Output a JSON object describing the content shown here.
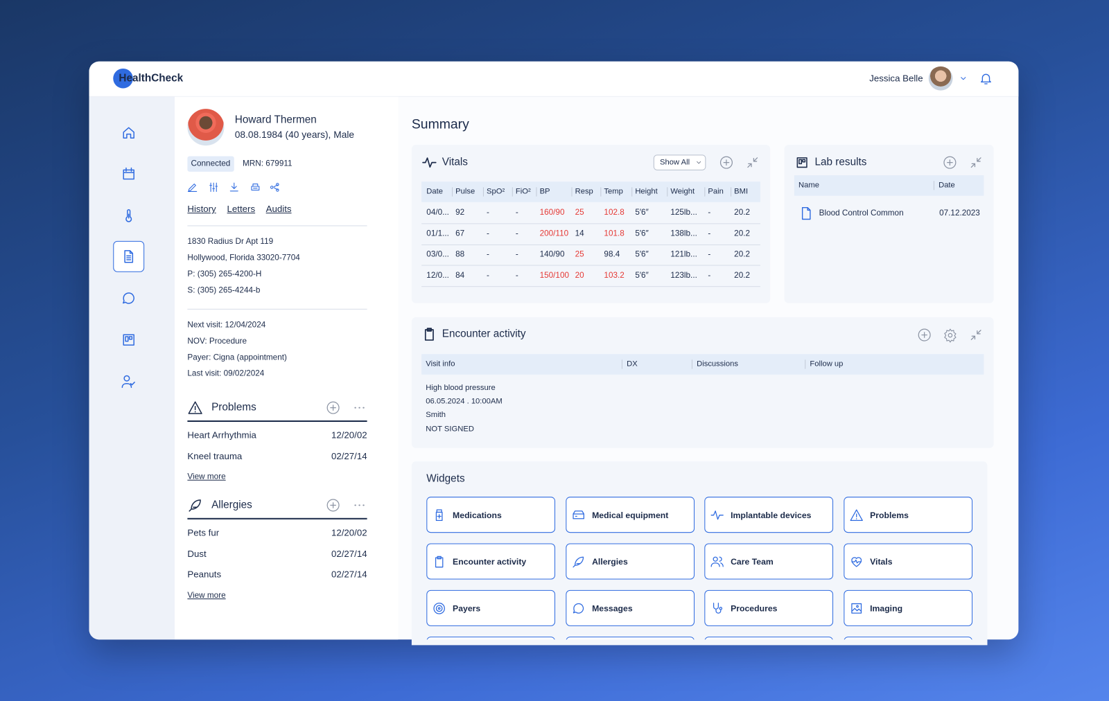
{
  "header": {
    "logo": "HealthCheck",
    "user": "Jessica Belle"
  },
  "patient": {
    "name": "Howard Thermen",
    "dob": "08.08.1984 (40 years), Male",
    "status": "Connected",
    "mrn": "MRN: 679911",
    "links": [
      "History",
      "Letters",
      "Audits"
    ],
    "address": [
      "1830 Radius Dr Apt 119",
      "Hollywood, Florida 33020-7704",
      "P: (305) 265-4200-H",
      "S: (305) 265-4244-b"
    ],
    "visit": [
      "Next visit: 12/04/2024",
      "NOV: Procedure",
      "Payer: Cigna (appointment)",
      "Last visit: 09/02/2024"
    ]
  },
  "problems": {
    "title": "Problems",
    "items": [
      {
        "name": "Heart Arrhythmia",
        "date": "12/20/02"
      },
      {
        "name": "Kneel trauma",
        "date": "02/27/14"
      }
    ],
    "more": "View more"
  },
  "allergies": {
    "title": "Allergies",
    "items": [
      {
        "name": "Pets fur",
        "date": "12/20/02"
      },
      {
        "name": "Dust",
        "date": "02/27/14"
      },
      {
        "name": "Peanuts",
        "date": "02/27/14"
      }
    ],
    "more": "View more"
  },
  "summary": {
    "title": "Summary"
  },
  "vitals": {
    "title": "Vitals",
    "filter": "Show All",
    "columns": [
      "Date",
      "Pulse",
      "SpO²",
      "FiO²",
      "BP",
      "Resp",
      "Temp",
      "Height",
      "Weight",
      "Pain",
      "BMI"
    ],
    "rows": [
      [
        "04/0...",
        "92",
        "-",
        "-",
        "160/90",
        "25",
        "102.8",
        "5′6″",
        "125lb...",
        "-",
        "20.2"
      ],
      [
        "01/1...",
        "67",
        "-",
        "-",
        "200/110",
        "14",
        "101.8",
        "5′6″",
        "138lb...",
        "-",
        "20.2"
      ],
      [
        "03/0...",
        "88",
        "-",
        "-",
        "140/90",
        "25",
        "98.4",
        "5′6″",
        "121lb...",
        "-",
        "20.2"
      ],
      [
        "12/0...",
        "84",
        "-",
        "-",
        "150/100",
        "20",
        "103.2",
        "5′6″",
        "123lb...",
        "-",
        "20.2"
      ]
    ],
    "alerts": [
      [
        4,
        5,
        6
      ],
      [
        4,
        6
      ],
      [
        5
      ],
      [
        4,
        5,
        6
      ]
    ],
    "alert_color": "#e53935"
  },
  "lab": {
    "title": "Lab results",
    "columns": [
      "Name",
      "Date"
    ],
    "rows": [
      [
        "Blood Control Common",
        "07.12.2023"
      ]
    ]
  },
  "encounter": {
    "title": "Encounter activity",
    "columns": [
      "Visit info",
      "DX",
      "Discussions",
      "Follow up"
    ],
    "entries": [
      "High blood pressure",
      "06.05.2024 . 10:00AM",
      "Smith",
      "NOT SIGNED"
    ]
  },
  "widgets": {
    "title": "Widgets",
    "items": [
      "Medications",
      "Medical equipment",
      "Implantable devices",
      "Problems",
      "Encounter activity",
      "Allergies",
      "Care Team",
      "Vitals",
      "Payers",
      "Messages",
      "Procedures",
      "Imaging"
    ]
  }
}
